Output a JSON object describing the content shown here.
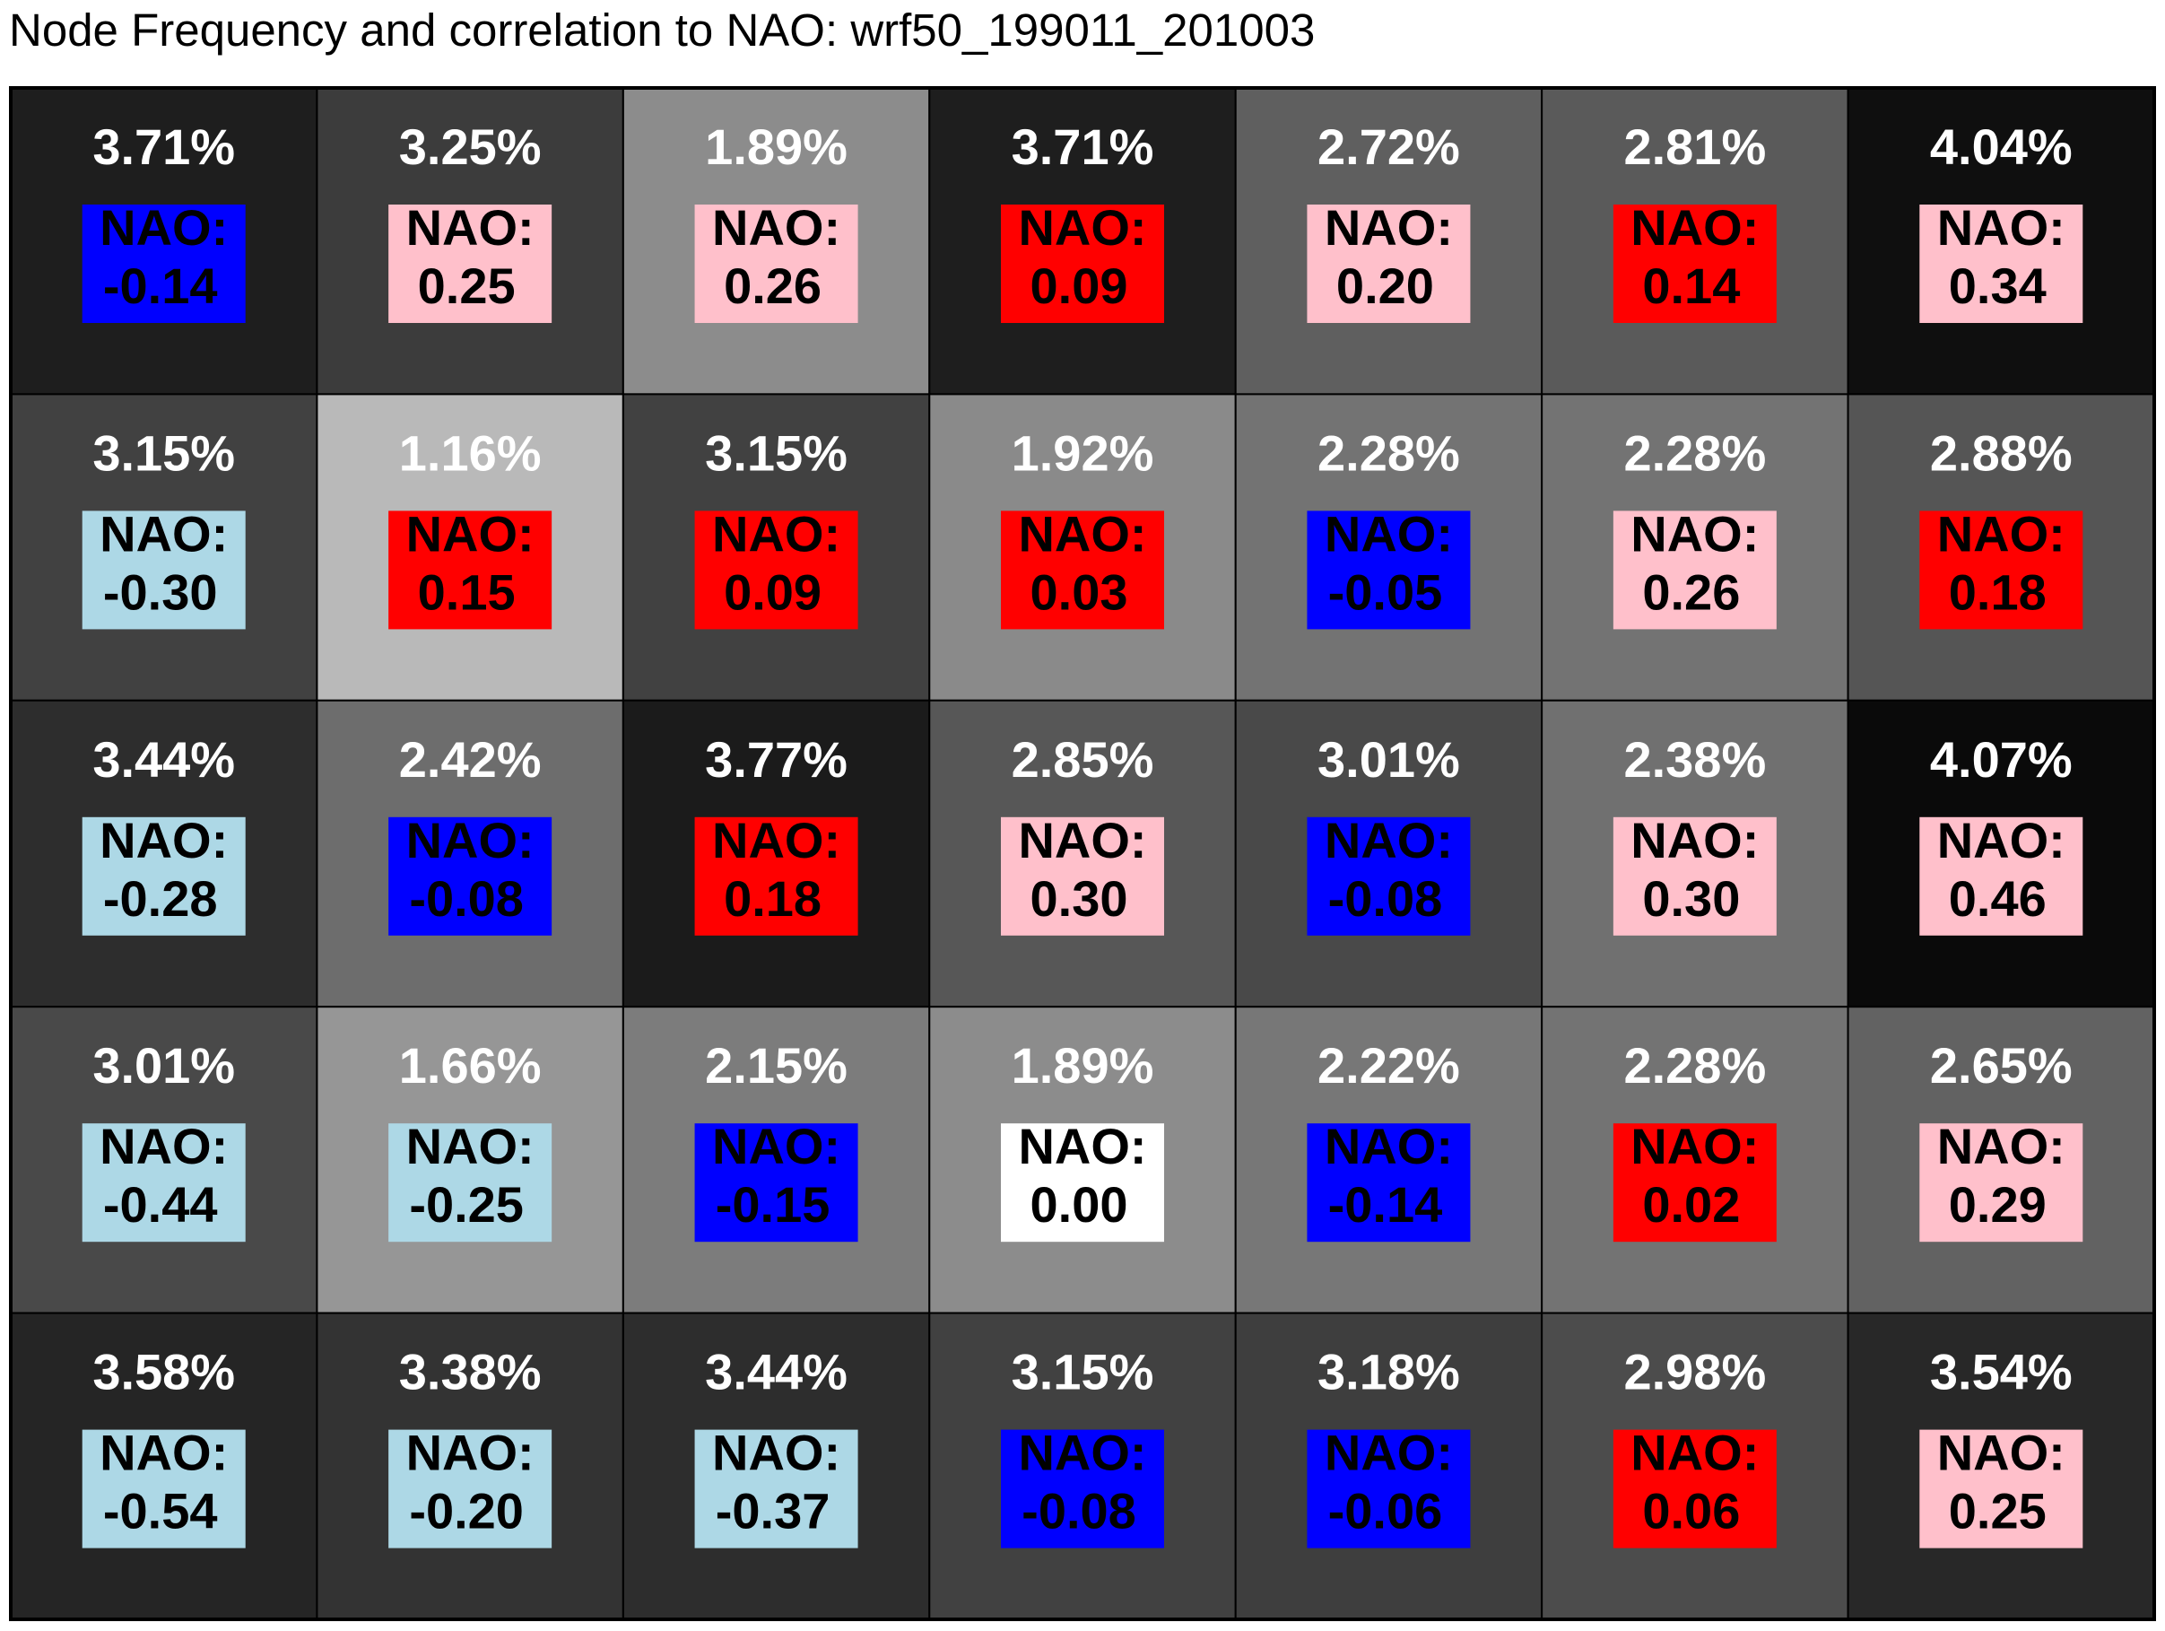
{
  "title": "Node Frequency and correlation to NAO: wrf50_199011_201003",
  "chart_data": {
    "type": "heatmap",
    "title": "Node Frequency and correlation to NAO: wrf50_199011_201003",
    "rows": 5,
    "cols": 7,
    "nao_label": "NAO:",
    "frequency_unit": "%",
    "frequency_fill": "grayscale, darker = higher frequency",
    "nao_box_colors": {
      "strong_negative": "#add8e6",
      "weak_negative": "#0000ff",
      "zero": "#ffffff",
      "weak_positive": "#ff0000",
      "strong_positive": "#ffc0cb"
    },
    "frequency": [
      [
        "3.71%",
        "3.25%",
        "1.89%",
        "3.71%",
        "2.72%",
        "2.81%",
        "4.04%"
      ],
      [
        "3.15%",
        "1.16%",
        "3.15%",
        "1.92%",
        "2.28%",
        "2.28%",
        "2.88%"
      ],
      [
        "3.44%",
        "2.42%",
        "3.77%",
        "2.85%",
        "3.01%",
        "2.38%",
        "4.07%"
      ],
      [
        "3.01%",
        "1.66%",
        "2.15%",
        "1.89%",
        "2.22%",
        "2.28%",
        "2.65%"
      ],
      [
        "3.58%",
        "3.38%",
        "3.44%",
        "3.15%",
        "3.18%",
        "2.98%",
        "3.54%"
      ]
    ],
    "nao": [
      [
        "-0.14",
        "0.25",
        "0.26",
        "0.09",
        "0.20",
        "0.14",
        "0.34"
      ],
      [
        "-0.30",
        "0.15",
        "0.09",
        "0.03",
        "-0.05",
        "0.26",
        "0.18"
      ],
      [
        "-0.28",
        "-0.08",
        "0.18",
        "0.30",
        "-0.08",
        "0.30",
        "0.46"
      ],
      [
        "-0.44",
        "-0.25",
        "-0.15",
        "0.00",
        "-0.14",
        "0.02",
        "0.29"
      ],
      [
        "-0.54",
        "-0.20",
        "-0.37",
        "-0.08",
        "-0.06",
        "0.06",
        "0.25"
      ]
    ],
    "nao_box": [
      [
        "#0000ff",
        "#ffc0cb",
        "#ffc0cb",
        "#ff0000",
        "#ffc0cb",
        "#ff0000",
        "#ffc0cb"
      ],
      [
        "#add8e6",
        "#ff0000",
        "#ff0000",
        "#ff0000",
        "#0000ff",
        "#ffc0cb",
        "#ff0000"
      ],
      [
        "#add8e6",
        "#0000ff",
        "#ff0000",
        "#ffc0cb",
        "#0000ff",
        "#ffc0cb",
        "#ffc0cb"
      ],
      [
        "#add8e6",
        "#add8e6",
        "#0000ff",
        "#ffffff",
        "#0000ff",
        "#ff0000",
        "#ffc0cb"
      ],
      [
        "#add8e6",
        "#add8e6",
        "#add8e6",
        "#0000ff",
        "#0000ff",
        "#ff0000",
        "#ffc0cb"
      ]
    ],
    "cell_fill": [
      [
        "#1e1e1e",
        "#3c3c3c",
        "#8c8c8c",
        "#1e1e1e",
        "#5f5f5f",
        "#5a5a5a",
        "#0f0f0f"
      ],
      [
        "#414141",
        "#b9b9b9",
        "#414141",
        "#8a8a8a",
        "#737373",
        "#737373",
        "#555555"
      ],
      [
        "#2d2d2d",
        "#6d6d6d",
        "#1b1b1b",
        "#575757",
        "#494949",
        "#707070",
        "#0a0a0a"
      ],
      [
        "#494949",
        "#969696",
        "#7c7c7c",
        "#8c8c8c",
        "#777777",
        "#737373",
        "#626262"
      ],
      [
        "#252525",
        "#333333",
        "#2d2d2d",
        "#414141",
        "#3e3e3e",
        "#4c4c4c",
        "#282828"
      ]
    ]
  }
}
